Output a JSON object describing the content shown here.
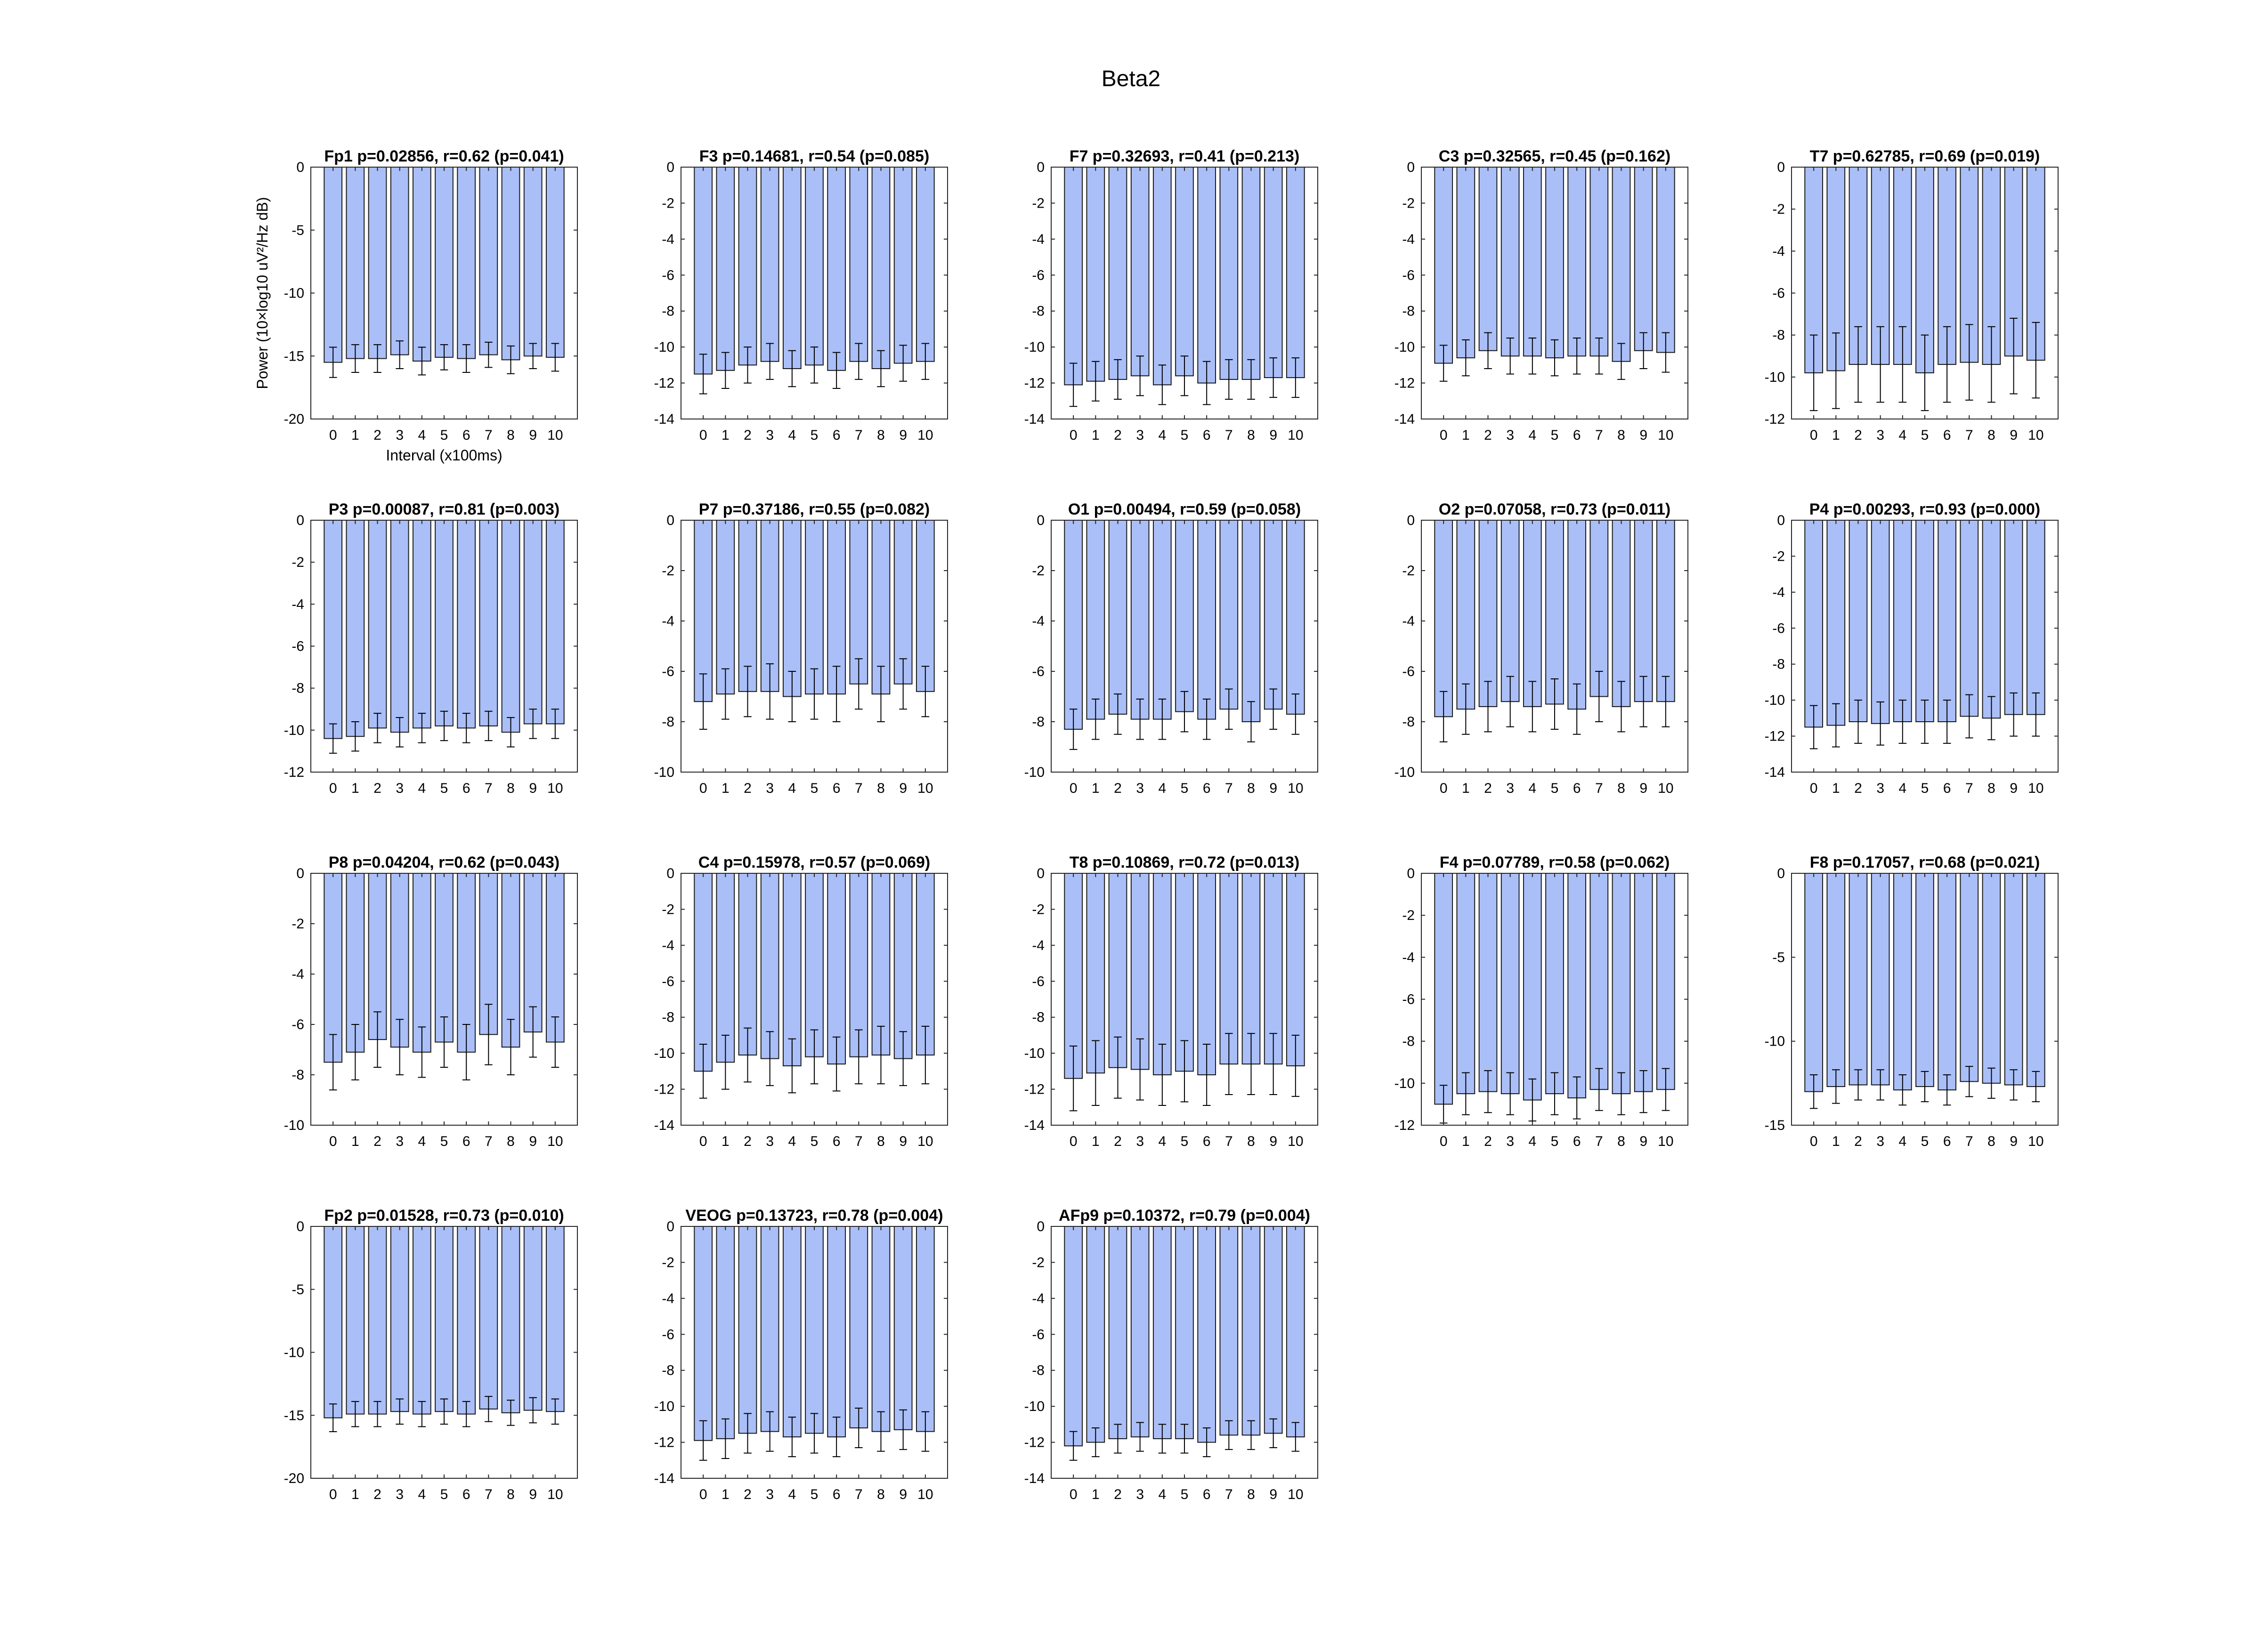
{
  "figure": {
    "title": "Beta2"
  },
  "colors": {
    "bar_fill": "#aabff7",
    "bar_edge": "#1a1a1a",
    "axis": "#262626",
    "text": "#000000"
  },
  "chart_data": [
    {
      "type": "bar",
      "title": "Fp1 p=0.02856, r=0.62 (p=0.041)",
      "categories": [
        "0",
        "1",
        "2",
        "3",
        "4",
        "5",
        "6",
        "7",
        "8",
        "9",
        "10"
      ],
      "values": [
        -15.5,
        -15.2,
        -15.2,
        -14.9,
        -15.4,
        -15.1,
        -15.2,
        -14.9,
        -15.3,
        -15.0,
        -15.1
      ],
      "errors": [
        1.2,
        1.1,
        1.1,
        1.1,
        1.1,
        1.0,
        1.1,
        1.0,
        1.1,
        1.0,
        1.1
      ],
      "ylim": [
        -20,
        0
      ],
      "yticks": [
        -20,
        -15,
        -10,
        -5,
        0
      ],
      "ylabel": "Power (10×log10 uV²/Hz dB)",
      "xlabel": "Interval (x100ms)"
    },
    {
      "type": "bar",
      "title": "F3 p=0.14681, r=0.54 (p=0.085)",
      "categories": [
        "0",
        "1",
        "2",
        "3",
        "4",
        "5",
        "6",
        "7",
        "8",
        "9",
        "10"
      ],
      "values": [
        -11.5,
        -11.3,
        -11.0,
        -10.8,
        -11.2,
        -11.0,
        -11.3,
        -10.8,
        -11.2,
        -10.9,
        -10.8
      ],
      "errors": [
        1.1,
        1.0,
        1.0,
        1.0,
        1.0,
        1.0,
        1.0,
        1.0,
        1.0,
        1.0,
        1.0
      ],
      "ylim": [
        -14,
        0
      ],
      "yticks": [
        -14,
        -12,
        -10,
        -8,
        -6,
        -4,
        -2,
        0
      ],
      "ylabel": "",
      "xlabel": ""
    },
    {
      "type": "bar",
      "title": "F7 p=0.32693, r=0.41 (p=0.213)",
      "categories": [
        "0",
        "1",
        "2",
        "3",
        "4",
        "5",
        "6",
        "7",
        "8",
        "9",
        "10"
      ],
      "values": [
        -12.1,
        -11.9,
        -11.8,
        -11.6,
        -12.1,
        -11.6,
        -12.0,
        -11.8,
        -11.8,
        -11.7,
        -11.7
      ],
      "errors": [
        1.2,
        1.1,
        1.1,
        1.1,
        1.1,
        1.1,
        1.2,
        1.1,
        1.1,
        1.1,
        1.1
      ],
      "ylim": [
        -14,
        0
      ],
      "yticks": [
        -14,
        -12,
        -10,
        -8,
        -6,
        -4,
        -2,
        0
      ],
      "ylabel": "",
      "xlabel": ""
    },
    {
      "type": "bar",
      "title": "C3 p=0.32565, r=0.45 (p=0.162)",
      "categories": [
        "0",
        "1",
        "2",
        "3",
        "4",
        "5",
        "6",
        "7",
        "8",
        "9",
        "10"
      ],
      "values": [
        -10.9,
        -10.6,
        -10.2,
        -10.5,
        -10.5,
        -10.6,
        -10.5,
        -10.5,
        -10.8,
        -10.2,
        -10.3
      ],
      "errors": [
        1.0,
        1.0,
        1.0,
        1.0,
        1.0,
        1.0,
        1.0,
        1.0,
        1.0,
        1.0,
        1.1
      ],
      "ylim": [
        -14,
        0
      ],
      "yticks": [
        -14,
        -12,
        -10,
        -8,
        -6,
        -4,
        -2,
        0
      ],
      "ylabel": "",
      "xlabel": ""
    },
    {
      "type": "bar",
      "title": "T7 p=0.62785, r=0.69 (p=0.019)",
      "categories": [
        "0",
        "1",
        "2",
        "3",
        "4",
        "5",
        "6",
        "7",
        "8",
        "9",
        "10"
      ],
      "values": [
        -9.8,
        -9.7,
        -9.4,
        -9.4,
        -9.4,
        -9.8,
        -9.4,
        -9.3,
        -9.4,
        -9.0,
        -9.2
      ],
      "errors": [
        1.8,
        1.8,
        1.8,
        1.8,
        1.8,
        1.8,
        1.8,
        1.8,
        1.8,
        1.8,
        1.8
      ],
      "ylim": [
        -12,
        0
      ],
      "yticks": [
        -12,
        -10,
        -8,
        -6,
        -4,
        -2,
        0
      ],
      "ylabel": "",
      "xlabel": ""
    },
    {
      "type": "bar",
      "title": "P3 p=0.00087, r=0.81 (p=0.003)",
      "categories": [
        "0",
        "1",
        "2",
        "3",
        "4",
        "5",
        "6",
        "7",
        "8",
        "9",
        "10"
      ],
      "values": [
        -10.4,
        -10.3,
        -9.9,
        -10.1,
        -9.9,
        -9.8,
        -9.9,
        -9.8,
        -10.1,
        -9.7,
        -9.7
      ],
      "errors": [
        0.7,
        0.7,
        0.7,
        0.7,
        0.7,
        0.7,
        0.7,
        0.7,
        0.7,
        0.7,
        0.7
      ],
      "ylim": [
        -12,
        0
      ],
      "yticks": [
        -12,
        -10,
        -8,
        -6,
        -4,
        -2,
        0
      ],
      "ylabel": "",
      "xlabel": ""
    },
    {
      "type": "bar",
      "title": "P7 p=0.37186, r=0.55 (p=0.082)",
      "categories": [
        "0",
        "1",
        "2",
        "3",
        "4",
        "5",
        "6",
        "7",
        "8",
        "9",
        "10"
      ],
      "values": [
        -7.2,
        -6.9,
        -6.8,
        -6.8,
        -7.0,
        -6.9,
        -6.9,
        -6.5,
        -6.9,
        -6.5,
        -6.8
      ],
      "errors": [
        1.1,
        1.0,
        1.0,
        1.1,
        1.0,
        1.0,
        1.1,
        1.0,
        1.1,
        1.0,
        1.0
      ],
      "ylim": [
        -10,
        0
      ],
      "yticks": [
        -10,
        -8,
        -6,
        -4,
        -2,
        0
      ],
      "ylabel": "",
      "xlabel": ""
    },
    {
      "type": "bar",
      "title": "O1 p=0.00494, r=0.59 (p=0.058)",
      "categories": [
        "0",
        "1",
        "2",
        "3",
        "4",
        "5",
        "6",
        "7",
        "8",
        "9",
        "10"
      ],
      "values": [
        -8.3,
        -7.9,
        -7.7,
        -7.9,
        -7.9,
        -7.6,
        -7.9,
        -7.5,
        -8.0,
        -7.5,
        -7.7
      ],
      "errors": [
        0.8,
        0.8,
        0.8,
        0.8,
        0.8,
        0.8,
        0.8,
        0.8,
        0.8,
        0.8,
        0.8
      ],
      "ylim": [
        -10,
        0
      ],
      "yticks": [
        -10,
        -8,
        -6,
        -4,
        -2,
        0
      ],
      "ylabel": "",
      "xlabel": ""
    },
    {
      "type": "bar",
      "title": "O2 p=0.07058, r=0.73 (p=0.011)",
      "categories": [
        "0",
        "1",
        "2",
        "3",
        "4",
        "5",
        "6",
        "7",
        "8",
        "9",
        "10"
      ],
      "values": [
        -7.8,
        -7.5,
        -7.4,
        -7.2,
        -7.4,
        -7.3,
        -7.5,
        -7.0,
        -7.4,
        -7.2,
        -7.2
      ],
      "errors": [
        1.0,
        1.0,
        1.0,
        1.0,
        1.0,
        1.0,
        1.0,
        1.0,
        1.0,
        1.0,
        1.0
      ],
      "ylim": [
        -10,
        0
      ],
      "yticks": [
        -10,
        -8,
        -6,
        -4,
        -2,
        0
      ],
      "ylabel": "",
      "xlabel": ""
    },
    {
      "type": "bar",
      "title": "P4 p=0.00293, r=0.93 (p=0.000)",
      "categories": [
        "0",
        "1",
        "2",
        "3",
        "4",
        "5",
        "6",
        "7",
        "8",
        "9",
        "10"
      ],
      "values": [
        -11.5,
        -11.4,
        -11.2,
        -11.3,
        -11.2,
        -11.2,
        -11.2,
        -10.9,
        -11.0,
        -10.8,
        -10.8
      ],
      "errors": [
        1.2,
        1.2,
        1.2,
        1.2,
        1.2,
        1.2,
        1.2,
        1.2,
        1.2,
        1.2,
        1.2
      ],
      "ylim": [
        -14,
        0
      ],
      "yticks": [
        -14,
        -12,
        -10,
        -8,
        -6,
        -4,
        -2,
        0
      ],
      "ylabel": "",
      "xlabel": ""
    },
    {
      "type": "bar",
      "title": "P8 p=0.04204, r=0.62 (p=0.043)",
      "categories": [
        "0",
        "1",
        "2",
        "3",
        "4",
        "5",
        "6",
        "7",
        "8",
        "9",
        "10"
      ],
      "values": [
        -7.5,
        -7.1,
        -6.6,
        -6.9,
        -7.1,
        -6.7,
        -7.1,
        -6.4,
        -6.9,
        -6.3,
        -6.7
      ],
      "errors": [
        1.1,
        1.1,
        1.1,
        1.1,
        1.0,
        1.0,
        1.1,
        1.2,
        1.1,
        1.0,
        1.0
      ],
      "ylim": [
        -10,
        0
      ],
      "yticks": [
        -10,
        -8,
        -6,
        -4,
        -2,
        0
      ],
      "ylabel": "",
      "xlabel": ""
    },
    {
      "type": "bar",
      "title": "C4 p=0.15978, r=0.57 (p=0.069)",
      "categories": [
        "0",
        "1",
        "2",
        "3",
        "4",
        "5",
        "6",
        "7",
        "8",
        "9",
        "10"
      ],
      "values": [
        -11.0,
        -10.5,
        -10.1,
        -10.3,
        -10.7,
        -10.2,
        -10.6,
        -10.2,
        -10.1,
        -10.3,
        -10.1
      ],
      "errors": [
        1.5,
        1.5,
        1.5,
        1.5,
        1.5,
        1.5,
        1.5,
        1.5,
        1.6,
        1.5,
        1.6
      ],
      "ylim": [
        -14,
        0
      ],
      "yticks": [
        -14,
        -12,
        -10,
        -8,
        -6,
        -4,
        -2,
        0
      ],
      "ylabel": "",
      "xlabel": ""
    },
    {
      "type": "bar",
      "title": "T8 p=0.10869, r=0.72 (p=0.013)",
      "categories": [
        "0",
        "1",
        "2",
        "3",
        "4",
        "5",
        "6",
        "7",
        "8",
        "9",
        "10"
      ],
      "values": [
        -11.4,
        -11.1,
        -10.8,
        -10.9,
        -11.2,
        -11.0,
        -11.2,
        -10.6,
        -10.6,
        -10.6,
        -10.7
      ],
      "errors": [
        1.8,
        1.8,
        1.7,
        1.7,
        1.7,
        1.7,
        1.7,
        1.7,
        1.7,
        1.7,
        1.7
      ],
      "ylim": [
        -14,
        0
      ],
      "yticks": [
        -14,
        -12,
        -10,
        -8,
        -6,
        -4,
        -2,
        0
      ],
      "ylabel": "",
      "xlabel": ""
    },
    {
      "type": "bar",
      "title": "F4 p=0.07789, r=0.58 (p=0.062)",
      "categories": [
        "0",
        "1",
        "2",
        "3",
        "4",
        "5",
        "6",
        "7",
        "8",
        "9",
        "10"
      ],
      "values": [
        -11.0,
        -10.5,
        -10.4,
        -10.5,
        -10.8,
        -10.5,
        -10.7,
        -10.3,
        -10.5,
        -10.4,
        -10.3
      ],
      "errors": [
        0.9,
        1.0,
        1.0,
        1.0,
        1.0,
        1.0,
        1.0,
        1.0,
        1.0,
        1.0,
        1.0
      ],
      "ylim": [
        -12,
        0
      ],
      "yticks": [
        -12,
        -10,
        -8,
        -6,
        -4,
        -2,
        0
      ],
      "ylabel": "",
      "xlabel": ""
    },
    {
      "type": "bar",
      "title": "F8 p=0.17057, r=0.68 (p=0.021)",
      "categories": [
        "0",
        "1",
        "2",
        "3",
        "4",
        "5",
        "6",
        "7",
        "8",
        "9",
        "10"
      ],
      "values": [
        -13.0,
        -12.7,
        -12.6,
        -12.6,
        -12.9,
        -12.7,
        -12.9,
        -12.4,
        -12.5,
        -12.6,
        -12.7
      ],
      "errors": [
        1.0,
        1.0,
        0.9,
        0.9,
        0.9,
        0.9,
        0.9,
        0.9,
        0.9,
        0.9,
        0.9
      ],
      "ylim": [
        -15,
        0
      ],
      "yticks": [
        -15,
        -10,
        -5,
        0
      ],
      "ylabel": "",
      "xlabel": ""
    },
    {
      "type": "bar",
      "title": "Fp2 p=0.01528, r=0.73 (p=0.010)",
      "categories": [
        "0",
        "1",
        "2",
        "3",
        "4",
        "5",
        "6",
        "7",
        "8",
        "9",
        "10"
      ],
      "values": [
        -15.2,
        -14.9,
        -14.9,
        -14.7,
        -14.9,
        -14.7,
        -14.9,
        -14.5,
        -14.8,
        -14.6,
        -14.7
      ],
      "errors": [
        1.1,
        1.0,
        1.0,
        1.0,
        1.0,
        1.0,
        1.0,
        1.0,
        1.0,
        1.0,
        1.0
      ],
      "ylim": [
        -20,
        0
      ],
      "yticks": [
        -20,
        -15,
        -10,
        -5,
        0
      ],
      "ylabel": "",
      "xlabel": ""
    },
    {
      "type": "bar",
      "title": "VEOG p=0.13723, r=0.78 (p=0.004)",
      "categories": [
        "0",
        "1",
        "2",
        "3",
        "4",
        "5",
        "6",
        "7",
        "8",
        "9",
        "10"
      ],
      "values": [
        -11.9,
        -11.8,
        -11.5,
        -11.4,
        -11.7,
        -11.5,
        -11.7,
        -11.2,
        -11.4,
        -11.3,
        -11.4
      ],
      "errors": [
        1.1,
        1.1,
        1.1,
        1.1,
        1.1,
        1.1,
        1.1,
        1.1,
        1.1,
        1.1,
        1.1
      ],
      "ylim": [
        -14,
        0
      ],
      "yticks": [
        -14,
        -12,
        -10,
        -8,
        -6,
        -4,
        -2,
        0
      ],
      "ylabel": "",
      "xlabel": ""
    },
    {
      "type": "bar",
      "title": "AFp9 p=0.10372, r=0.79 (p=0.004)",
      "categories": [
        "0",
        "1",
        "2",
        "3",
        "4",
        "5",
        "6",
        "7",
        "8",
        "9",
        "10"
      ],
      "values": [
        -12.2,
        -12.0,
        -11.8,
        -11.7,
        -11.8,
        -11.8,
        -12.0,
        -11.6,
        -11.6,
        -11.5,
        -11.7
      ],
      "errors": [
        0.8,
        0.8,
        0.8,
        0.8,
        0.8,
        0.8,
        0.8,
        0.8,
        0.8,
        0.8,
        0.8
      ],
      "ylim": [
        -14,
        0
      ],
      "yticks": [
        -14,
        -12,
        -10,
        -8,
        -6,
        -4,
        -2,
        0
      ],
      "ylabel": "",
      "xlabel": ""
    }
  ]
}
